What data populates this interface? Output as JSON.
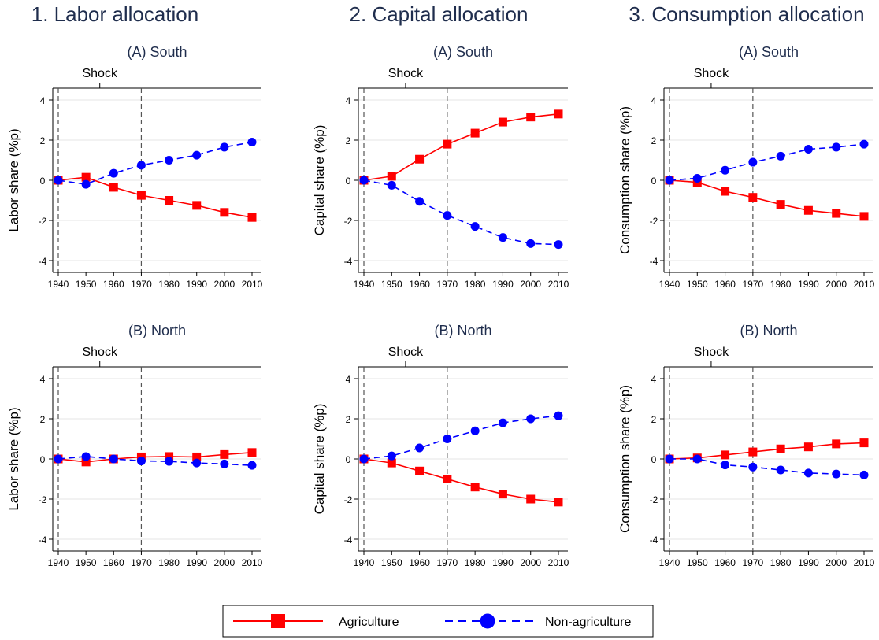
{
  "columns": [
    {
      "title": "1. Labor allocation",
      "ylabel": "Labor share (%p)"
    },
    {
      "title": "2. Capital allocation",
      "ylabel": "Capital share (%p)"
    },
    {
      "title": "3. Consumption allocation",
      "ylabel": "Consumption share (%p)"
    }
  ],
  "rows": [
    {
      "title": "(A) South"
    },
    {
      "title": "(B) North"
    }
  ],
  "shock_label": "Shock",
  "legend": {
    "series": [
      "Agriculture",
      "Non-agriculture"
    ]
  },
  "colors": {
    "agriculture": "#ff0000",
    "non_agriculture": "#0000ff",
    "title": "#1f2d4d",
    "grid": "#e6e6e6"
  },
  "chart_data": [
    {
      "type": "line",
      "column": 0,
      "row": 0,
      "title": "(A) South",
      "xlabel": "",
      "ylabel": "Labor share (%p)",
      "x": [
        1940,
        1950,
        1960,
        1970,
        1980,
        1990,
        2000,
        2010
      ],
      "ylim": [
        -4,
        4
      ],
      "yticks": [
        -4,
        -2,
        0,
        2,
        4
      ],
      "vlines": [
        1940,
        1970
      ],
      "series": [
        {
          "name": "Agriculture",
          "values": [
            0,
            0.15,
            -0.35,
            -0.75,
            -1.0,
            -1.25,
            -1.6,
            -1.85
          ]
        },
        {
          "name": "Non-agriculture",
          "values": [
            0,
            -0.2,
            0.35,
            0.75,
            1.0,
            1.25,
            1.65,
            1.9
          ]
        }
      ]
    },
    {
      "type": "line",
      "column": 1,
      "row": 0,
      "title": "(A) South",
      "xlabel": "",
      "ylabel": "Capital share (%p)",
      "x": [
        1940,
        1950,
        1960,
        1970,
        1980,
        1990,
        2000,
        2010
      ],
      "ylim": [
        -4,
        4
      ],
      "yticks": [
        -4,
        -2,
        0,
        2,
        4
      ],
      "vlines": [
        1940,
        1970
      ],
      "series": [
        {
          "name": "Agriculture",
          "values": [
            0,
            0.2,
            1.05,
            1.8,
            2.35,
            2.9,
            3.15,
            3.3
          ]
        },
        {
          "name": "Non-agriculture",
          "values": [
            0,
            -0.25,
            -1.05,
            -1.75,
            -2.3,
            -2.85,
            -3.15,
            -3.2
          ]
        }
      ]
    },
    {
      "type": "line",
      "column": 2,
      "row": 0,
      "title": "(A) South",
      "xlabel": "",
      "ylabel": "Consumption share (%p)",
      "x": [
        1940,
        1950,
        1960,
        1970,
        1980,
        1990,
        2000,
        2010
      ],
      "ylim": [
        -4,
        4
      ],
      "yticks": [
        -4,
        -2,
        0,
        2,
        4
      ],
      "vlines": [
        1940,
        1970
      ],
      "series": [
        {
          "name": "Agriculture",
          "values": [
            0,
            -0.1,
            -0.55,
            -0.85,
            -1.2,
            -1.5,
            -1.65,
            -1.8
          ]
        },
        {
          "name": "Non-agriculture",
          "values": [
            0,
            0.1,
            0.5,
            0.9,
            1.2,
            1.55,
            1.65,
            1.8
          ]
        }
      ]
    },
    {
      "type": "line",
      "column": 0,
      "row": 1,
      "title": "(B) North",
      "xlabel": "",
      "ylabel": "Labor share (%p)",
      "x": [
        1940,
        1950,
        1960,
        1970,
        1980,
        1990,
        2000,
        2010
      ],
      "ylim": [
        -4,
        4
      ],
      "yticks": [
        -4,
        -2,
        0,
        2,
        4
      ],
      "vlines": [
        1940,
        1970
      ],
      "series": [
        {
          "name": "Agriculture",
          "values": [
            0,
            -0.15,
            0,
            0.1,
            0.12,
            0.1,
            0.22,
            0.32
          ]
        },
        {
          "name": "Non-agriculture",
          "values": [
            0,
            0.12,
            0,
            -0.1,
            -0.12,
            -0.2,
            -0.25,
            -0.32
          ]
        }
      ]
    },
    {
      "type": "line",
      "column": 1,
      "row": 1,
      "title": "(B) North",
      "xlabel": "",
      "ylabel": "Capital share (%p)",
      "x": [
        1940,
        1950,
        1960,
        1970,
        1980,
        1990,
        2000,
        2010
      ],
      "ylim": [
        -4,
        4
      ],
      "yticks": [
        -4,
        -2,
        0,
        2,
        4
      ],
      "vlines": [
        1940,
        1970
      ],
      "series": [
        {
          "name": "Agriculture",
          "values": [
            0,
            -0.2,
            -0.6,
            -1.0,
            -1.4,
            -1.75,
            -2.0,
            -2.15
          ]
        },
        {
          "name": "Non-agriculture",
          "values": [
            0,
            0.15,
            0.55,
            1.0,
            1.4,
            1.8,
            2.0,
            2.15
          ]
        }
      ]
    },
    {
      "type": "line",
      "column": 2,
      "row": 1,
      "title": "(B) North",
      "xlabel": "",
      "ylabel": "Consumption share (%p)",
      "x": [
        1940,
        1950,
        1960,
        1970,
        1980,
        1990,
        2000,
        2010
      ],
      "ylim": [
        -4,
        4
      ],
      "yticks": [
        -4,
        -2,
        0,
        2,
        4
      ],
      "vlines": [
        1940,
        1970
      ],
      "series": [
        {
          "name": "Agriculture",
          "values": [
            0,
            0.05,
            0.2,
            0.35,
            0.5,
            0.6,
            0.75,
            0.8
          ]
        },
        {
          "name": "Non-agriculture",
          "values": [
            0,
            0,
            -0.3,
            -0.4,
            -0.55,
            -0.7,
            -0.75,
            -0.8
          ]
        }
      ]
    }
  ]
}
